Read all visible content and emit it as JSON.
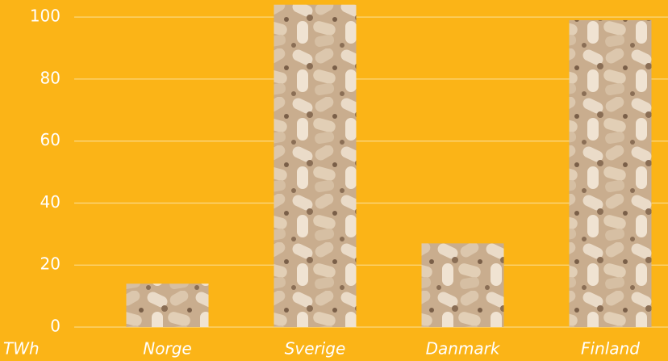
{
  "chart_data": {
    "type": "bar",
    "ylabel": "TWh",
    "categories": [
      "Norge",
      "Sverige",
      "Danmark",
      "Finland"
    ],
    "values": [
      14,
      104,
      27,
      99
    ],
    "color": "#c9ad8e",
    "ylim": [
      0,
      105.5
    ],
    "yticks": [
      0,
      20,
      40,
      60,
      80,
      100
    ],
    "grid": true
  }
}
